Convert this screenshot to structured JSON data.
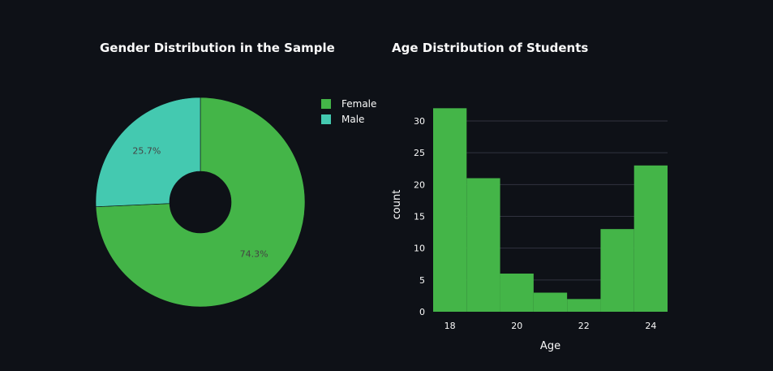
{
  "chart_data": [
    {
      "type": "pie",
      "title": "Gender Distribution in the Sample",
      "hole": true,
      "labels": [
        "Female",
        "Male"
      ],
      "values": [
        74.3,
        25.7
      ],
      "value_labels": [
        "74.3%",
        "25.7%"
      ],
      "colors": [
        "#44b548",
        "#44c9b0"
      ],
      "legend_position": "top-right"
    },
    {
      "type": "bar",
      "title": "Age Distribution of Students",
      "xlabel": "Age",
      "ylabel": "count",
      "x": [
        18,
        19,
        20,
        21,
        22,
        23,
        24
      ],
      "values": [
        32,
        21,
        6,
        3,
        2,
        13,
        23
      ],
      "x_ticks": [
        18,
        20,
        22,
        24
      ],
      "y_ticks": [
        0,
        5,
        10,
        15,
        20,
        25,
        30
      ],
      "xlim": [
        17.5,
        24.5
      ],
      "ylim": [
        0,
        33.7
      ],
      "grid": true,
      "color": "#44b548"
    }
  ]
}
